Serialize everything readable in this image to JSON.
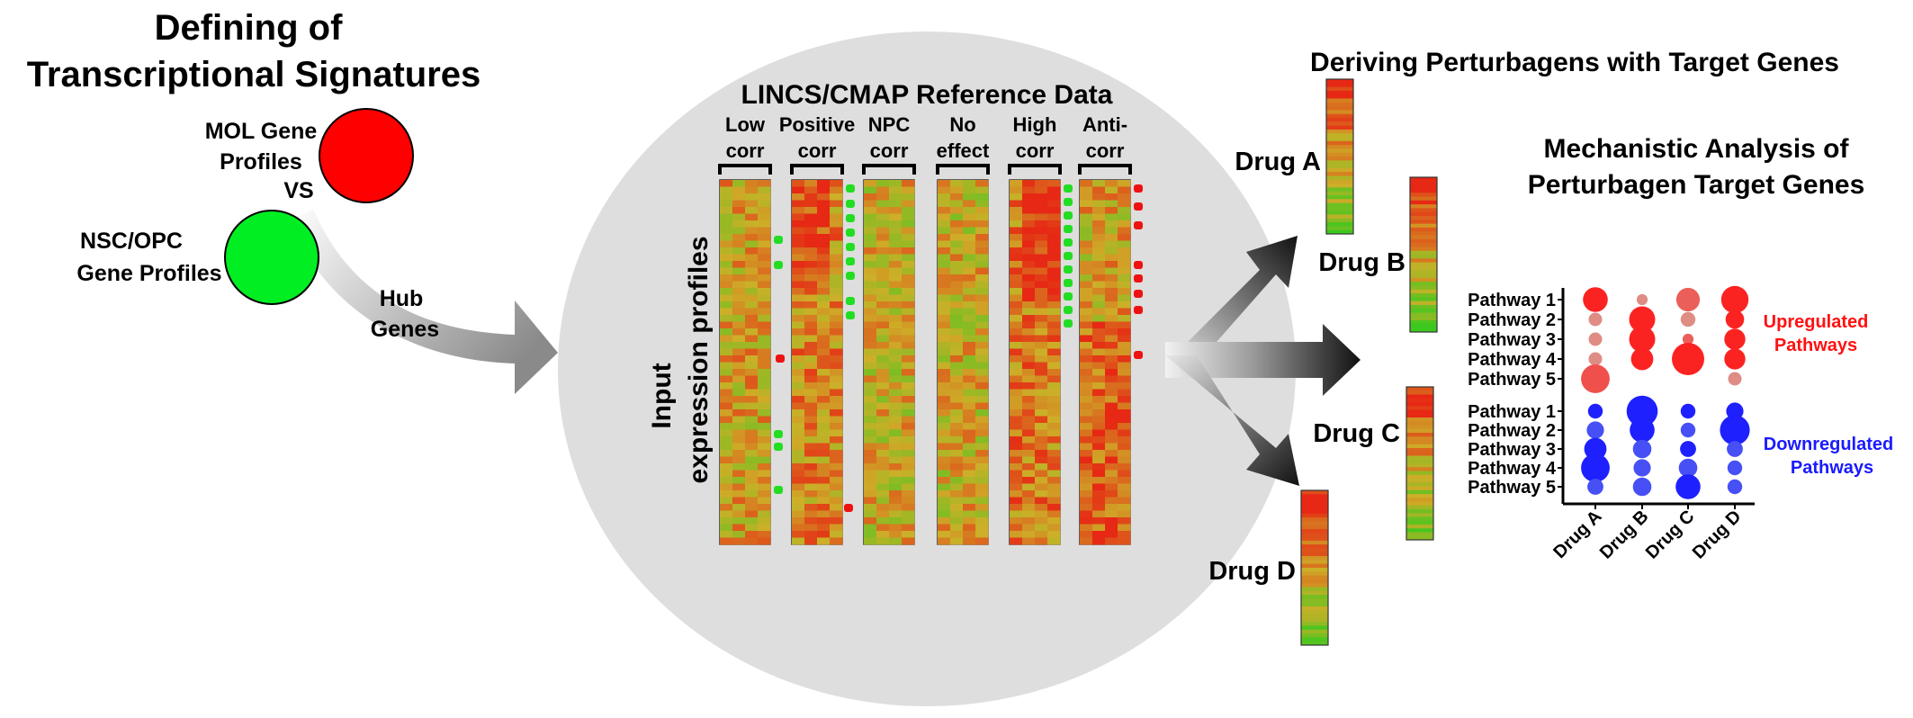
{
  "section1": {
    "title_line1": "Defining of",
    "title_line2": "Transcriptional Signatures",
    "mol_label_line1": "MOL Gene",
    "mol_label_line2": "Profiles",
    "vs_label": "VS",
    "nsc_label_line1": "NSC/OPC",
    "nsc_label_line2": "Gene Profiles",
    "hub_label_line1": "Hub",
    "hub_label_line2": "Genes",
    "mol_color": "#ff0000",
    "nsc_color": "#00ee22"
  },
  "section2": {
    "title": "LINCS/CMAP Reference Data",
    "input_label_line1": "Input",
    "input_label_line2": "expression profiles",
    "columns": [
      {
        "line1": "Low",
        "line2": "corr"
      },
      {
        "line1": "Positive",
        "line2": "corr"
      },
      {
        "line1": "NPC",
        "line2": "corr"
      },
      {
        "line1": "No",
        "line2": "effect"
      },
      {
        "line1": "High",
        "line2": "corr"
      },
      {
        "line1": "Anti-",
        "line2": "corr"
      }
    ]
  },
  "section3": {
    "title": "Deriving Perturbagens with Target Genes",
    "drugs": [
      "Drug A",
      "Drug B",
      "Drug C",
      "Drug D"
    ]
  },
  "section4": {
    "title_line1": "Mechanistic Analysis of",
    "title_line2": "Perturbagen Target Genes",
    "up_label_line1": "Upregulated",
    "up_label_line2": "Pathways",
    "down_label_line1": "Downregulated",
    "down_label_line2": "Pathways",
    "up_color": "#ff1111",
    "down_color": "#1a1aff"
  },
  "chart_data": {
    "type": "scatter",
    "x_categories": [
      "Drug A",
      "Drug B",
      "Drug C",
      "Drug D"
    ],
    "up_pathways": [
      "Pathway 1",
      "Pathway 2",
      "Pathway 3",
      "Pathway 4",
      "Pathway 5"
    ],
    "down_pathways": [
      "Pathway 1",
      "Pathway 2",
      "Pathway 3",
      "Pathway 4",
      "Pathway 5"
    ],
    "up_size": [
      [
        0.7,
        0.25,
        0.25,
        0.25,
        0.85
      ],
      [
        0.15,
        0.75,
        0.75,
        0.6,
        0.0
      ],
      [
        0.65,
        0.3,
        0.15,
        1.0,
        0.0
      ],
      [
        0.8,
        0.45,
        0.55,
        0.55,
        0.25
      ]
    ],
    "up_intensity": [
      [
        0.9,
        0.2,
        0.2,
        0.2,
        0.6
      ],
      [
        0.2,
        0.9,
        0.9,
        0.9,
        0.0
      ],
      [
        0.5,
        0.2,
        0.5,
        0.9,
        0.0
      ],
      [
        0.9,
        0.9,
        0.9,
        0.9,
        0.2
      ]
    ],
    "down_size": [
      [
        0.3,
        0.4,
        0.6,
        0.85,
        0.35
      ],
      [
        0.95,
        0.7,
        0.45,
        0.4,
        0.45
      ],
      [
        0.3,
        0.3,
        0.35,
        0.45,
        0.7
      ],
      [
        0.4,
        0.9,
        0.35,
        0.3,
        0.3
      ]
    ],
    "down_intensity": [
      [
        0.9,
        0.5,
        0.9,
        0.9,
        0.5
      ],
      [
        0.9,
        0.9,
        0.5,
        0.5,
        0.5
      ],
      [
        0.9,
        0.5,
        0.9,
        0.5,
        0.9
      ],
      [
        0.9,
        0.9,
        0.5,
        0.5,
        0.5
      ]
    ]
  }
}
